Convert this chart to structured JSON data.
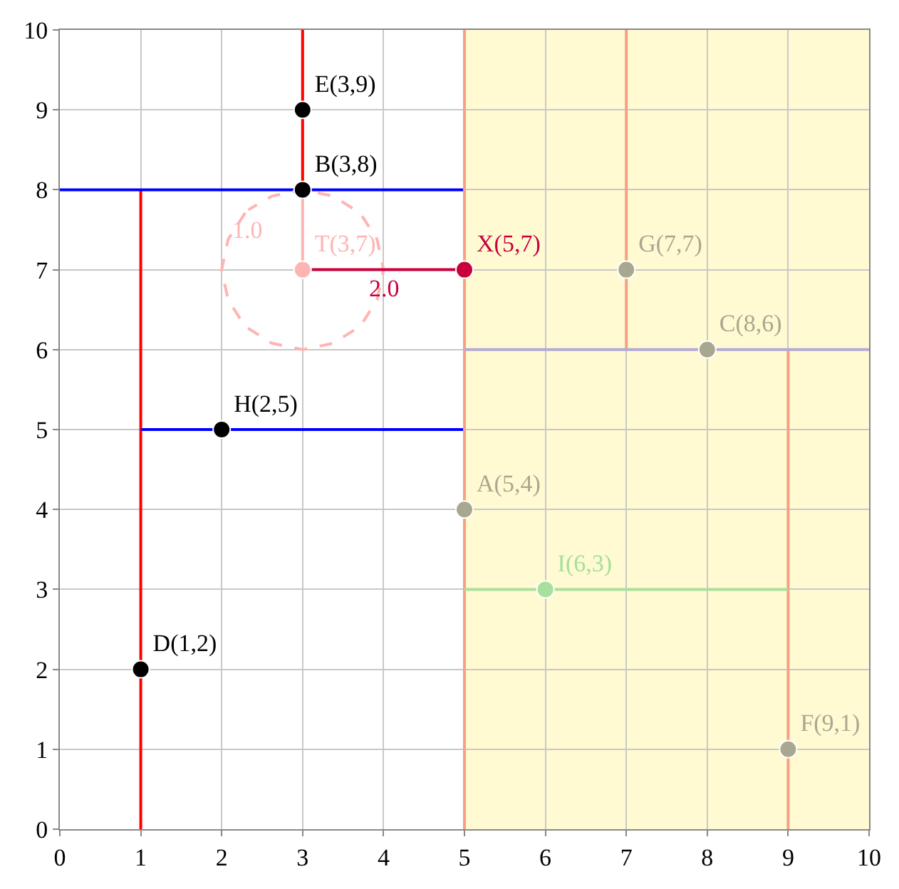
{
  "chart_data": {
    "type": "scatter",
    "xlim": [
      0,
      10
    ],
    "ylim": [
      0,
      10
    ],
    "xticks": [
      0,
      1,
      2,
      3,
      4,
      5,
      6,
      7,
      8,
      9,
      10
    ],
    "yticks": [
      0,
      1,
      2,
      3,
      4,
      5,
      6,
      7,
      8,
      9,
      10
    ],
    "grid": true,
    "legend": false,
    "marker": "circle",
    "bands": [
      {
        "axis": "x",
        "from": 5,
        "to": 10,
        "color": "#fffad2"
      }
    ],
    "series": [
      {
        "type": "line",
        "marker": "none",
        "color": "#ff0000",
        "x": [
          1,
          1
        ],
        "values": [
          0,
          8
        ]
      },
      {
        "type": "line",
        "marker": "none",
        "color": "#ff0000",
        "x": [
          3,
          3
        ],
        "values": [
          8,
          10
        ]
      },
      {
        "type": "line",
        "marker": "none",
        "color": "#0000ff",
        "x": [
          0,
          5
        ],
        "values": [
          8,
          8
        ]
      },
      {
        "type": "line",
        "marker": "none",
        "color": "#0000ff",
        "x": [
          1,
          5
        ],
        "values": [
          5,
          5
        ]
      },
      {
        "type": "line",
        "marker": "none",
        "color": "#f7a084",
        "x": [
          5,
          5
        ],
        "values": [
          0,
          10
        ]
      },
      {
        "type": "line",
        "marker": "none",
        "color": "#f7a084",
        "x": [
          7,
          7
        ],
        "values": [
          6,
          10
        ]
      },
      {
        "type": "line",
        "marker": "none",
        "color": "#f7a084",
        "x": [
          9,
          9
        ],
        "values": [
          0,
          6
        ]
      },
      {
        "type": "line",
        "marker": "none",
        "color": "#b4aad8",
        "x": [
          5,
          10
        ],
        "values": [
          6,
          6
        ]
      },
      {
        "type": "line",
        "marker": "none",
        "color": "#acdf9c",
        "x": [
          5,
          9
        ],
        "values": [
          3,
          3
        ]
      },
      {
        "type": "line",
        "marker": "none",
        "color": "#ffb4b4",
        "x": [
          3,
          3
        ],
        "values": [
          7,
          8
        ]
      },
      {
        "type": "line",
        "marker": "none",
        "name": "1.0",
        "color": "#ffb4b4",
        "line_style": "dashed",
        "x": [
          2.29,
          2.08,
          2,
          2.08,
          2.29,
          2.62,
          3,
          3.38,
          3.71,
          3.92,
          4,
          3.92,
          3.71,
          3.38,
          3,
          2.62,
          2.33
        ],
        "values": [
          7.71,
          7.38,
          7,
          6.62,
          6.29,
          6.08,
          6,
          6.08,
          6.29,
          6.62,
          7,
          7.38,
          7.71,
          7.92,
          8,
          7.92,
          7.75
        ]
      },
      {
        "type": "line",
        "marker": "none",
        "name": "2.0",
        "color": "#c8003c",
        "x": [
          3,
          5
        ],
        "values": [
          7,
          7
        ]
      },
      {
        "name": "E(3,9)",
        "color": "#000000",
        "x": [
          3
        ],
        "values": [
          9
        ]
      },
      {
        "name": "B(3,8)",
        "color": "#000000",
        "x": [
          3
        ],
        "values": [
          8
        ]
      },
      {
        "name": "H(2,5)",
        "color": "#000000",
        "x": [
          2
        ],
        "values": [
          5
        ]
      },
      {
        "name": "D(1,2)",
        "color": "#000000",
        "x": [
          1
        ],
        "values": [
          2
        ]
      },
      {
        "name": "A(5,4)",
        "color": "#a8a890",
        "x": [
          5
        ],
        "values": [
          4
        ]
      },
      {
        "name": "G(7,7)",
        "color": "#a8a890",
        "x": [
          7
        ],
        "values": [
          7
        ]
      },
      {
        "name": "C(8,6)",
        "color": "#a8a890",
        "x": [
          8
        ],
        "values": [
          6
        ]
      },
      {
        "name": "F(9,1)",
        "color": "#a8a890",
        "x": [
          9
        ],
        "values": [
          1
        ]
      },
      {
        "name": "I(6,3)",
        "color": "#a6e09a",
        "x": [
          6
        ],
        "values": [
          3
        ]
      },
      {
        "name": "T(3,7)",
        "color": "#ffb4b4",
        "x": [
          3
        ],
        "values": [
          7
        ]
      },
      {
        "name": "X(5,7)",
        "color": "#c8003c",
        "x": [
          5
        ],
        "values": [
          7
        ]
      }
    ]
  }
}
